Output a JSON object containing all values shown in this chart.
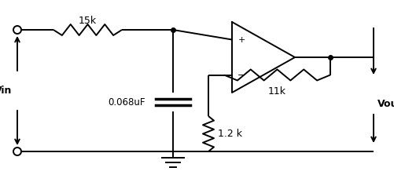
{
  "bg_color": "#ffffff",
  "line_color": "#000000",
  "text_color": "#000000",
  "figsize": [
    5.02,
    2.23
  ],
  "dpi": 100,
  "resistor_15k_label": "15k",
  "capacitor_label": "0.068uF",
  "resistor_11k_label": "11k",
  "resistor_12k_label": "1.2 k",
  "vin_label": "Vin",
  "vout_label": "Vout"
}
